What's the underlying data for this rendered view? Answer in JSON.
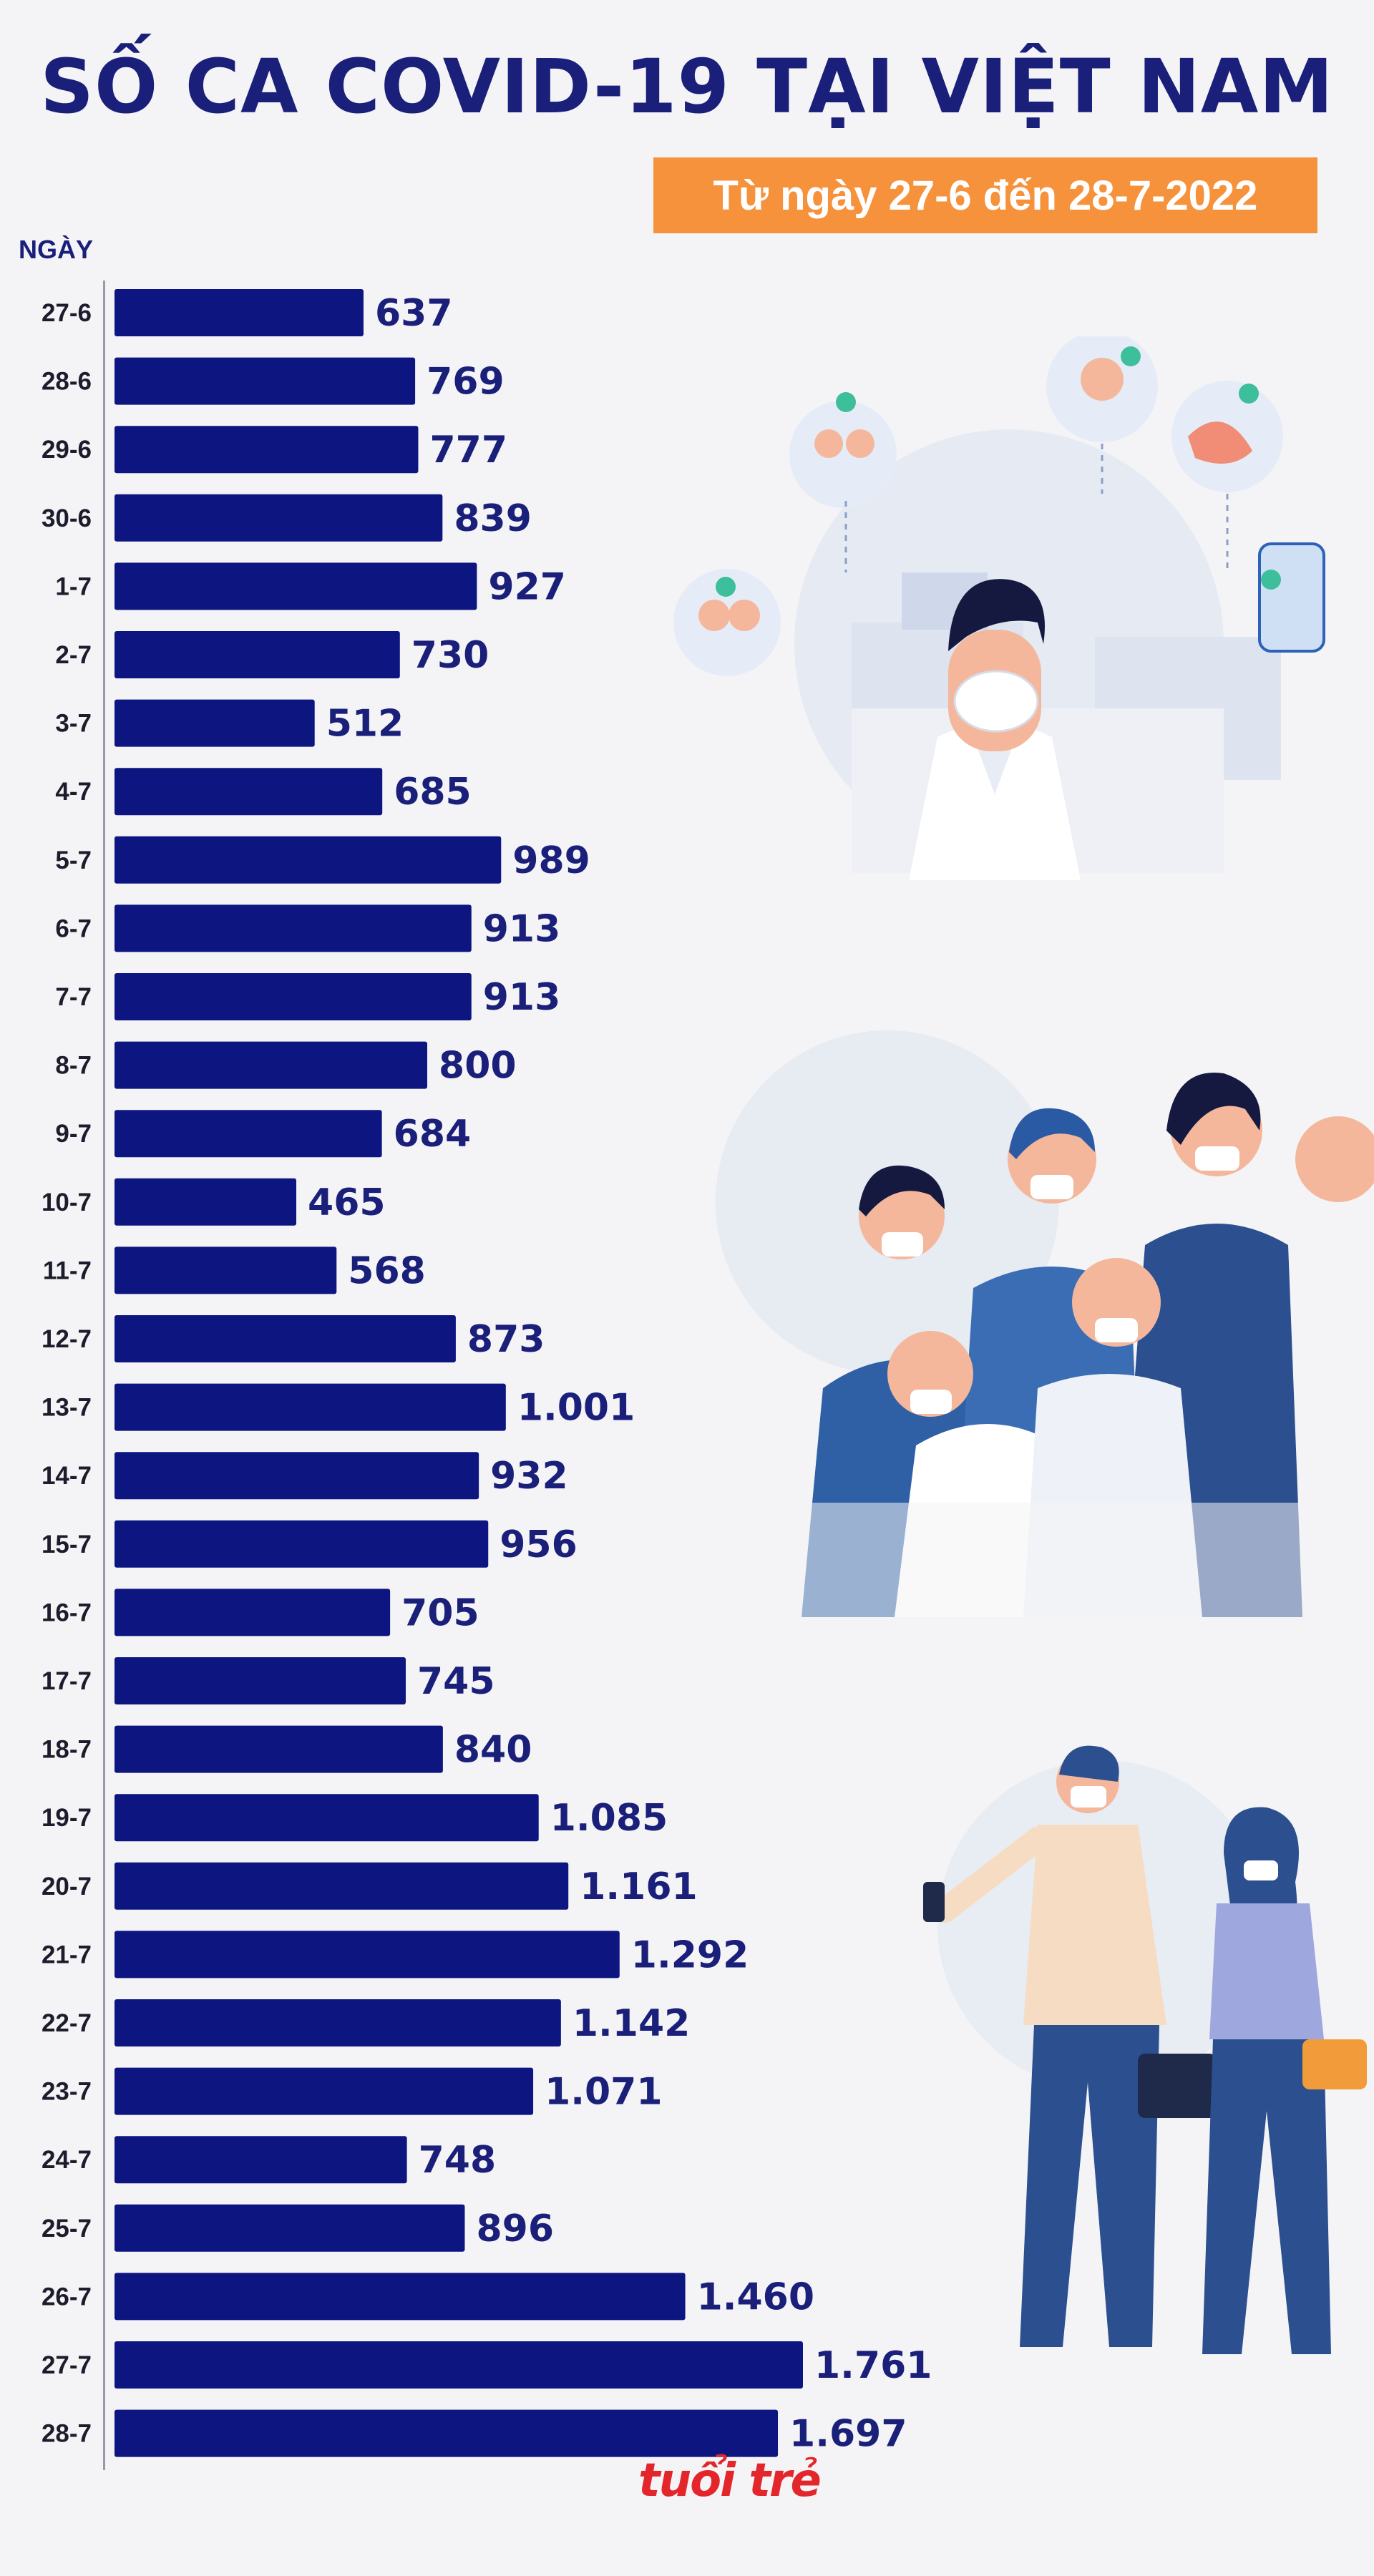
{
  "title": "SỐ CA COVID-19 TẠI VIỆT NAM",
  "subtitle": "Từ ngày 27-6 đến 28-7-2022",
  "logo_text": "tuổi trẻ",
  "colors": {
    "bar": "#0c1580",
    "title": "#1a1f7a",
    "subtitle_bg": "#f7923c",
    "logo": "#e3262b"
  },
  "chart_data": {
    "type": "bar",
    "orientation": "horizontal",
    "ylabel": "NGÀY",
    "categories": [
      "27-6",
      "28-6",
      "29-6",
      "30-6",
      "1-7",
      "2-7",
      "3-7",
      "4-7",
      "5-7",
      "6-7",
      "7-7",
      "8-7",
      "9-7",
      "10-7",
      "11-7",
      "12-7",
      "13-7",
      "14-7",
      "15-7",
      "16-7",
      "17-7",
      "18-7",
      "19-7",
      "20-7",
      "21-7",
      "22-7",
      "23-7",
      "24-7",
      "25-7",
      "26-7",
      "27-7",
      "28-7"
    ],
    "values": [
      637,
      769,
      777,
      839,
      927,
      730,
      512,
      685,
      989,
      913,
      913,
      800,
      684,
      465,
      568,
      873,
      1001,
      932,
      956,
      705,
      745,
      840,
      1085,
      1161,
      1292,
      1142,
      1071,
      748,
      896,
      1460,
      1761,
      1697
    ],
    "value_labels": [
      "637",
      "769",
      "777",
      "839",
      "927",
      "730",
      "512",
      "685",
      "989",
      "913",
      "913",
      "800",
      "684",
      "465",
      "568",
      "873",
      "1.001",
      "932",
      "956",
      "705",
      "745",
      "840",
      "1.085",
      "1.161",
      "1.292",
      "1.142",
      "1.071",
      "748",
      "896",
      "1.460",
      "1.761",
      "1.697"
    ],
    "xlim": [
      0,
      1761
    ]
  }
}
